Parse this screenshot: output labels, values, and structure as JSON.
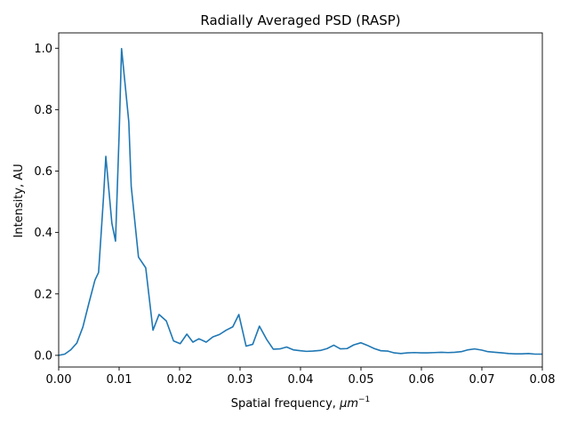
{
  "chart_data": {
    "type": "line",
    "title": "Radially Averaged PSD (RASP)",
    "xlabel": "Spatial frequency, ",
    "xlabel_unit_base": "μm",
    "xlabel_unit_exp": "−1",
    "ylabel": "Intensity, AU",
    "xlim": [
      0.0,
      0.08
    ],
    "ylim": [
      -0.038,
      1.05
    ],
    "grid": false,
    "legend": "none",
    "x_ticks": [
      {
        "value": 0.0,
        "label": "0.00"
      },
      {
        "value": 0.01,
        "label": "0.01"
      },
      {
        "value": 0.02,
        "label": "0.02"
      },
      {
        "value": 0.03,
        "label": "0.03"
      },
      {
        "value": 0.04,
        "label": "0.04"
      },
      {
        "value": 0.05,
        "label": "0.05"
      },
      {
        "value": 0.06,
        "label": "0.06"
      },
      {
        "value": 0.07,
        "label": "0.07"
      },
      {
        "value": 0.08,
        "label": "0.08"
      }
    ],
    "y_ticks": [
      {
        "value": 0.0,
        "label": "0.0"
      },
      {
        "value": 0.2,
        "label": "0.2"
      },
      {
        "value": 0.4,
        "label": "0.4"
      },
      {
        "value": 0.6,
        "label": "0.6"
      },
      {
        "value": 0.8,
        "label": "0.8"
      },
      {
        "value": 1.0,
        "label": "1.0"
      }
    ],
    "series": [
      {
        "color": "#1f77b4",
        "x": [
          0.0,
          0.001,
          0.002,
          0.003,
          0.004,
          0.005,
          0.006,
          0.0066,
          0.0074,
          0.0078,
          0.0088,
          0.0094,
          0.01,
          0.0104,
          0.011,
          0.0116,
          0.012,
          0.0132,
          0.0144,
          0.0156,
          0.0166,
          0.0178,
          0.019,
          0.0201,
          0.0212,
          0.0222,
          0.0232,
          0.0244,
          0.0255,
          0.0266,
          0.0277,
          0.0288,
          0.0298,
          0.031,
          0.0321,
          0.0332,
          0.0344,
          0.0355,
          0.0366,
          0.0377,
          0.0388,
          0.04,
          0.041,
          0.042,
          0.0433,
          0.0444,
          0.0455,
          0.0466,
          0.0477,
          0.0488,
          0.05,
          0.051,
          0.0522,
          0.0533,
          0.0544,
          0.0555,
          0.0566,
          0.0577,
          0.0588,
          0.06,
          0.061,
          0.0622,
          0.0633,
          0.0644,
          0.0655,
          0.0666,
          0.0677,
          0.0688,
          0.07,
          0.071,
          0.0722,
          0.0733,
          0.0744,
          0.0755,
          0.0766,
          0.0777,
          0.0788,
          0.08
        ],
        "y": [
          0.0,
          0.004,
          0.018,
          0.04,
          0.092,
          0.17,
          0.245,
          0.27,
          0.51,
          0.648,
          0.43,
          0.372,
          0.72,
          0.999,
          0.88,
          0.76,
          0.55,
          0.32,
          0.285,
          0.082,
          0.133,
          0.112,
          0.047,
          0.038,
          0.069,
          0.043,
          0.054,
          0.043,
          0.06,
          0.068,
          0.082,
          0.093,
          0.133,
          0.03,
          0.036,
          0.095,
          0.052,
          0.02,
          0.021,
          0.027,
          0.018,
          0.015,
          0.013,
          0.014,
          0.016,
          0.022,
          0.033,
          0.021,
          0.022,
          0.034,
          0.041,
          0.033,
          0.022,
          0.015,
          0.014,
          0.008,
          0.006,
          0.008,
          0.009,
          0.008,
          0.008,
          0.009,
          0.01,
          0.009,
          0.01,
          0.012,
          0.018,
          0.021,
          0.017,
          0.012,
          0.01,
          0.008,
          0.006,
          0.005,
          0.005,
          0.006,
          0.004,
          0.004
        ]
      }
    ]
  }
}
